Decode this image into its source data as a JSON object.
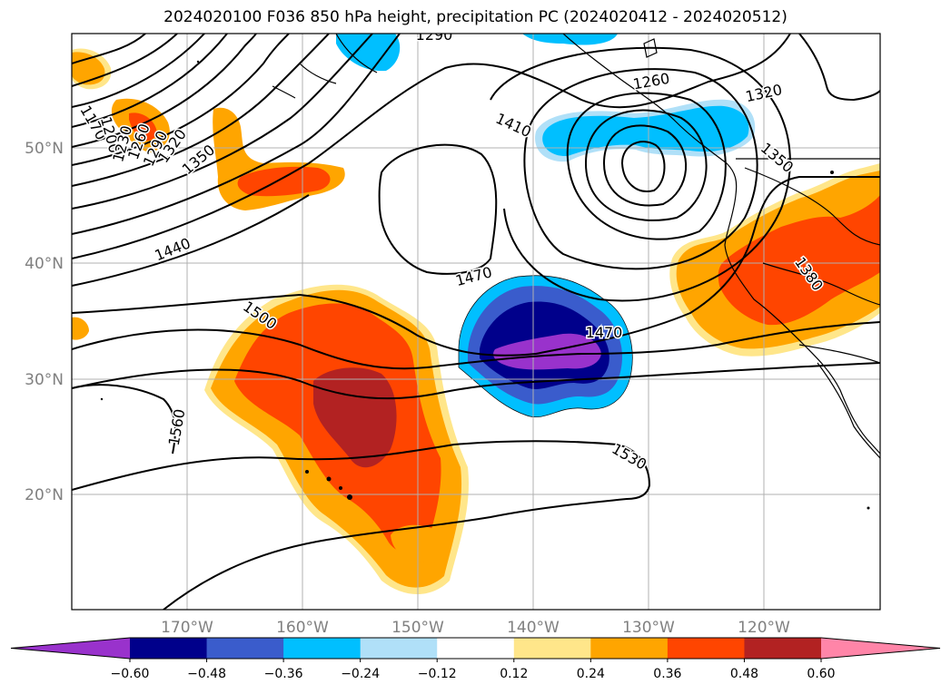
{
  "title": "2024020100 F036 850 hPa height, precipitation PC (2024020412 - 2024020512)",
  "map": {
    "lat_labels": [
      "50°N",
      "40°N",
      "30°N",
      "20°N"
    ],
    "lon_labels": [
      "170°W",
      "160°W",
      "150°W",
      "140°W",
      "130°W",
      "120°W"
    ],
    "contour_labels": [
      "1170",
      "1200",
      "1230",
      "1260",
      "1290",
      "1320",
      "1350",
      "1440",
      "1500",
      "1560",
      "1410",
      "1470",
      "1470",
      "1530",
      "1290",
      "1260",
      "1320",
      "1350",
      "1380"
    ]
  },
  "colorbar": {
    "ticks": [
      "−0.60",
      "−0.48",
      "−0.36",
      "−0.24",
      "−0.12",
      "0.12",
      "0.24",
      "0.36",
      "0.48",
      "0.60"
    ],
    "colors": [
      "#9932cc",
      "#00008b",
      "#3a5ccc",
      "#00bfff",
      "#b0e0f8",
      "#ffffff",
      "#ffe68a",
      "#ffa500",
      "#ff4500",
      "#b22222",
      "#ff85a8"
    ]
  }
}
